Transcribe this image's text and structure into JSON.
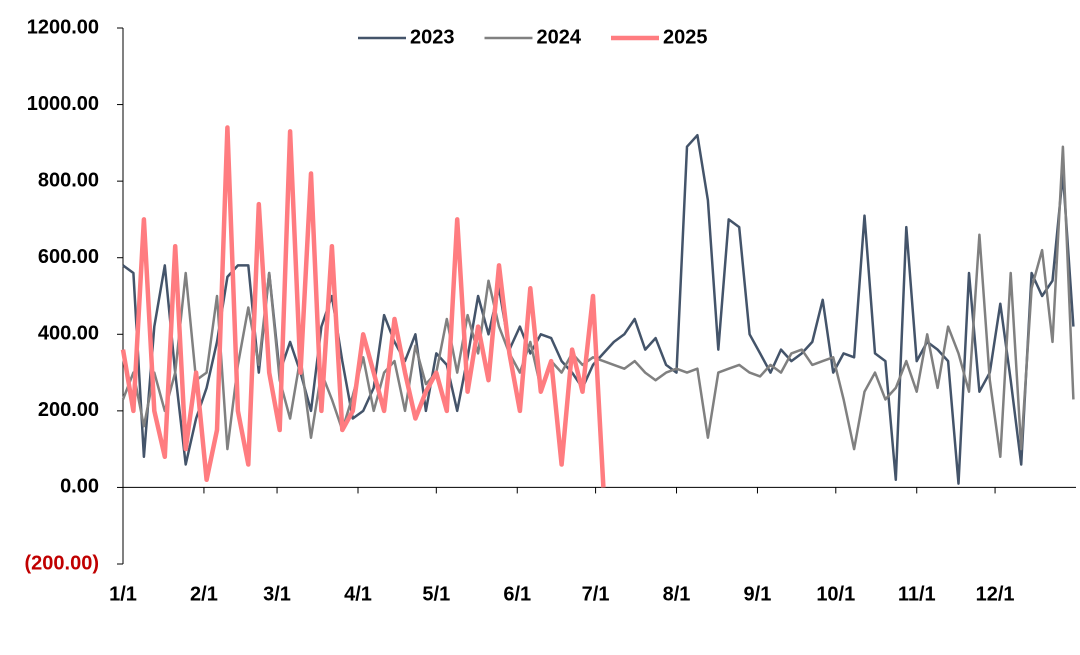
{
  "chart_data": {
    "type": "line",
    "x": [
      0,
      4,
      8,
      12,
      16,
      20,
      24,
      28,
      32,
      36,
      40,
      44,
      48,
      52,
      56,
      60,
      64,
      68,
      72,
      76,
      80,
      84,
      88,
      92,
      96,
      100,
      104,
      108,
      112,
      116,
      120,
      124,
      128,
      132,
      136,
      140,
      144,
      148,
      152,
      156,
      160,
      164,
      168,
      172,
      176,
      180,
      184,
      188,
      192,
      196,
      200,
      204,
      208,
      212,
      216,
      220,
      224,
      228,
      232,
      236,
      240,
      244,
      248,
      252,
      256,
      260,
      264,
      268,
      272,
      276,
      280,
      284,
      288,
      292,
      296,
      300,
      304,
      308,
      312,
      316,
      320,
      324,
      328,
      332,
      336,
      340,
      344,
      348,
      352,
      356,
      360,
      364
    ],
    "xlim": [
      0,
      365
    ],
    "xticks": [
      {
        "value": 0,
        "label": "1/1"
      },
      {
        "value": 31,
        "label": "2/1"
      },
      {
        "value": 59,
        "label": "3/1"
      },
      {
        "value": 90,
        "label": "4/1"
      },
      {
        "value": 120,
        "label": "5/1"
      },
      {
        "value": 151,
        "label": "6/1"
      },
      {
        "value": 181,
        "label": "7/1"
      },
      {
        "value": 212,
        "label": "8/1"
      },
      {
        "value": 243,
        "label": "9/1"
      },
      {
        "value": 273,
        "label": "10/1"
      },
      {
        "value": 304,
        "label": "11/1"
      },
      {
        "value": 334,
        "label": "12/1"
      }
    ],
    "ylim": [
      -200,
      1200
    ],
    "yticks": [
      {
        "value": -200,
        "label": "(200.00)"
      },
      {
        "value": 0,
        "label": "0.00"
      },
      {
        "value": 200,
        "label": "200.00"
      },
      {
        "value": 400,
        "label": "400.00"
      },
      {
        "value": 600,
        "label": "600.00"
      },
      {
        "value": 800,
        "label": "800.00"
      },
      {
        "value": 1000,
        "label": "1000.00"
      },
      {
        "value": 1200,
        "label": "1200.00"
      }
    ],
    "negative_tick_color": "#c00000",
    "legend": "top",
    "series": [
      {
        "name": "2023",
        "color": "#44546a",
        "width": 2.5,
        "values": [
          580,
          560,
          80,
          420,
          580,
          300,
          60,
          180,
          260,
          380,
          550,
          580,
          580,
          300,
          560,
          300,
          380,
          300,
          200,
          420,
          500,
          330,
          180,
          200,
          260,
          450,
          380,
          330,
          400,
          200,
          350,
          320,
          200,
          340,
          500,
          400,
          520,
          360,
          420,
          350,
          400,
          390,
          330,
          300,
          260,
          320,
          350,
          380,
          400,
          440,
          360,
          390,
          320,
          300,
          890,
          920,
          750,
          360,
          700,
          680,
          400,
          350,
          300,
          360,
          330,
          350,
          380,
          490,
          300,
          350,
          340,
          710,
          350,
          330,
          20,
          680,
          330,
          380,
          360,
          330,
          10,
          560,
          250,
          300,
          480,
          280,
          60,
          560,
          500,
          540,
          820,
          420
        ]
      },
      {
        "name": "2024",
        "color": "#808080",
        "width": 2.5,
        "values": [
          230,
          300,
          160,
          300,
          200,
          300,
          560,
          280,
          300,
          500,
          100,
          320,
          470,
          320,
          560,
          280,
          180,
          340,
          130,
          300,
          230,
          150,
          240,
          340,
          200,
          300,
          330,
          200,
          370,
          270,
          300,
          440,
          300,
          450,
          350,
          540,
          420,
          350,
          300,
          380,
          260,
          330,
          300,
          350,
          320,
          340,
          330,
          320,
          310,
          330,
          300,
          280,
          300,
          310,
          300,
          310,
          130,
          300,
          310,
          320,
          300,
          290,
          320,
          300,
          350,
          360,
          320,
          330,
          340,
          230,
          100,
          250,
          300,
          230,
          260,
          330,
          250,
          400,
          260,
          420,
          350,
          250,
          660,
          280,
          80,
          560,
          100,
          520,
          620,
          380,
          890,
          230
        ]
      },
      {
        "name": "2025",
        "color": "#ff7c80",
        "width": 4.5,
        "values": [
          360,
          200,
          700,
          200,
          80,
          630,
          100,
          300,
          20,
          150,
          940,
          200,
          60,
          740,
          300,
          150,
          930,
          300,
          820,
          200,
          630,
          150,
          200,
          400,
          300,
          200,
          440,
          300,
          180,
          250,
          300,
          200,
          700,
          250,
          420,
          280,
          580,
          350,
          200,
          520,
          250,
          330,
          60,
          360,
          250,
          500,
          0,
          null,
          null,
          null,
          null,
          null,
          null,
          null,
          null,
          null,
          null,
          null,
          null,
          null,
          null,
          null,
          null,
          null,
          null,
          null,
          null,
          null,
          null,
          null,
          null,
          null,
          null,
          null,
          null,
          null,
          null,
          null,
          null,
          null,
          null,
          null,
          null,
          null,
          null,
          null,
          null,
          null,
          null,
          null,
          null,
          null
        ]
      }
    ]
  }
}
